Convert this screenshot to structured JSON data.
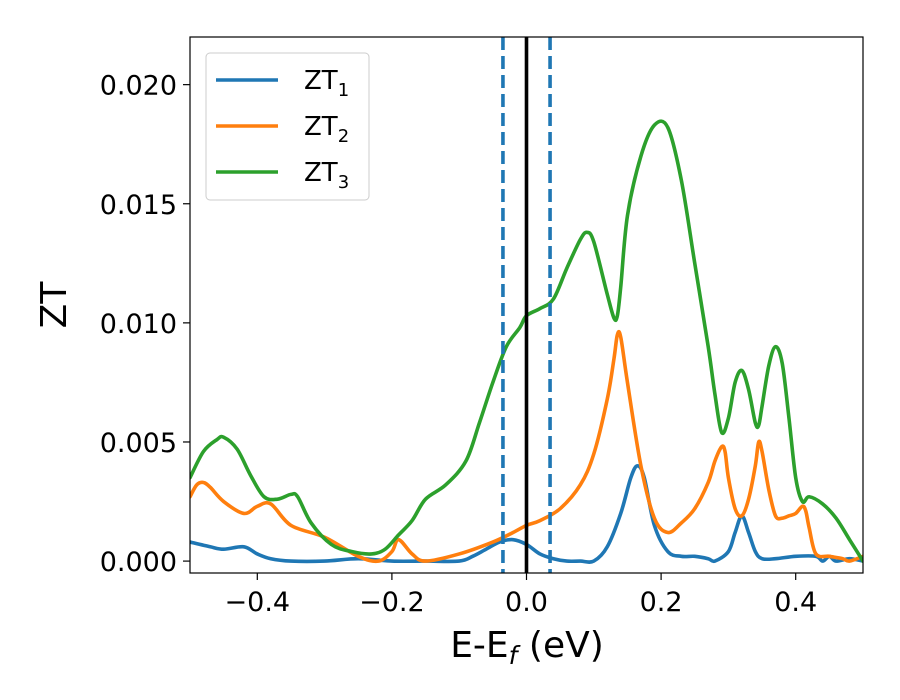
{
  "chart_data": {
    "type": "line",
    "title": "",
    "xlabel": "E-E",
    "xlabel_sub": "f",
    "xlabel_unit": " (eV)",
    "ylabel": "ZT",
    "xlim": [
      -0.5,
      0.5
    ],
    "ylim": [
      -0.0005,
      0.022
    ],
    "xticks": [
      -0.4,
      -0.2,
      0.0,
      0.2,
      0.4
    ],
    "xtick_labels": [
      "−0.4",
      "−0.2",
      "0.0",
      "0.2",
      "0.4"
    ],
    "yticks": [
      0.0,
      0.005,
      0.01,
      0.015,
      0.02
    ],
    "ytick_labels": [
      "0.000",
      "0.005",
      "0.010",
      "0.015",
      "0.020"
    ],
    "grid": false,
    "legend_position": "top-left",
    "vlines": [
      {
        "x": -0.035,
        "style": "dashed",
        "color": "#1f77b4"
      },
      {
        "x": 0.035,
        "style": "dashed",
        "color": "#1f77b4"
      },
      {
        "x": 0.0,
        "style": "solid",
        "color": "#000000"
      }
    ],
    "series": [
      {
        "name": "ZT",
        "name_sub": "1",
        "color": "#1f77b4",
        "x": [
          -0.5,
          -0.47,
          -0.45,
          -0.42,
          -0.4,
          -0.38,
          -0.35,
          -0.3,
          -0.25,
          -0.2,
          -0.15,
          -0.1,
          -0.08,
          -0.06,
          -0.04,
          -0.02,
          0.0,
          0.02,
          0.04,
          0.06,
          0.08,
          0.1,
          0.12,
          0.14,
          0.155,
          0.165,
          0.175,
          0.19,
          0.21,
          0.23,
          0.25,
          0.27,
          0.28,
          0.3,
          0.31,
          0.32,
          0.33,
          0.34,
          0.35,
          0.37,
          0.4,
          0.43,
          0.44,
          0.45,
          0.46,
          0.48,
          0.5
        ],
        "y": [
          0.0008,
          0.0006,
          0.0005,
          0.0006,
          0.0003,
          0.0001,
          0.0,
          0.0,
          0.0001,
          0.0,
          0.0,
          0.0,
          0.0002,
          0.0005,
          0.0008,
          0.0009,
          0.0007,
          0.0003,
          0.0001,
          0.0,
          0.0,
          0.0,
          0.0006,
          0.002,
          0.0035,
          0.004,
          0.0035,
          0.0015,
          0.0004,
          0.0002,
          0.0002,
          0.0001,
          0.0,
          0.0004,
          0.0012,
          0.0019,
          0.0012,
          0.0004,
          0.0001,
          0.0001,
          0.0002,
          0.0002,
          0.0,
          0.0002,
          0.0,
          0.0001,
          0.0
        ]
      },
      {
        "name": "ZT",
        "name_sub": "2",
        "color": "#ff7f0e",
        "x": [
          -0.5,
          -0.49,
          -0.48,
          -0.47,
          -0.45,
          -0.42,
          -0.4,
          -0.38,
          -0.35,
          -0.3,
          -0.25,
          -0.22,
          -0.2,
          -0.19,
          -0.17,
          -0.15,
          -0.1,
          -0.05,
          -0.02,
          0.0,
          0.02,
          0.05,
          0.08,
          0.1,
          0.12,
          0.13,
          0.135,
          0.14,
          0.15,
          0.17,
          0.19,
          0.21,
          0.23,
          0.25,
          0.27,
          0.28,
          0.29,
          0.295,
          0.3,
          0.31,
          0.32,
          0.33,
          0.34,
          0.345,
          0.35,
          0.36,
          0.37,
          0.38,
          0.39,
          0.4,
          0.41,
          0.415,
          0.42,
          0.43,
          0.45,
          0.47,
          0.48,
          0.5
        ],
        "y": [
          0.0027,
          0.0032,
          0.0033,
          0.0031,
          0.0025,
          0.002,
          0.0023,
          0.0024,
          0.0015,
          0.001,
          0.0002,
          0.0,
          0.0004,
          0.0009,
          0.0003,
          0.0,
          0.0003,
          0.0008,
          0.0012,
          0.0015,
          0.0017,
          0.0022,
          0.0032,
          0.0045,
          0.0068,
          0.0085,
          0.0095,
          0.0094,
          0.0075,
          0.004,
          0.0018,
          0.0012,
          0.0016,
          0.0022,
          0.0033,
          0.0042,
          0.0048,
          0.0046,
          0.0035,
          0.0022,
          0.0019,
          0.0026,
          0.004,
          0.005,
          0.0046,
          0.003,
          0.0019,
          0.0018,
          0.0019,
          0.002,
          0.0023,
          0.0021,
          0.0014,
          0.0003,
          0.0002,
          0.0001,
          0.0,
          0.0002
        ]
      },
      {
        "name": "ZT",
        "name_sub": "3",
        "color": "#2ca02c",
        "x": [
          -0.5,
          -0.48,
          -0.46,
          -0.45,
          -0.43,
          -0.41,
          -0.39,
          -0.37,
          -0.35,
          -0.34,
          -0.32,
          -0.29,
          -0.26,
          -0.23,
          -0.21,
          -0.19,
          -0.17,
          -0.15,
          -0.12,
          -0.09,
          -0.07,
          -0.05,
          -0.03,
          -0.01,
          0.0,
          0.02,
          0.04,
          0.06,
          0.08,
          0.09,
          0.1,
          0.12,
          0.13,
          0.135,
          0.14,
          0.15,
          0.17,
          0.19,
          0.21,
          0.23,
          0.25,
          0.27,
          0.28,
          0.29,
          0.3,
          0.31,
          0.32,
          0.33,
          0.34,
          0.345,
          0.35,
          0.36,
          0.37,
          0.38,
          0.39,
          0.4,
          0.41,
          0.42,
          0.44,
          0.46,
          0.48,
          0.5
        ],
        "y": [
          0.0035,
          0.0046,
          0.0051,
          0.0052,
          0.0047,
          0.0036,
          0.0027,
          0.0026,
          0.0028,
          0.0027,
          0.0016,
          0.0007,
          0.0004,
          0.0003,
          0.0005,
          0.0011,
          0.0017,
          0.0026,
          0.0032,
          0.0042,
          0.0058,
          0.0075,
          0.009,
          0.0098,
          0.0103,
          0.0106,
          0.011,
          0.0123,
          0.0135,
          0.0138,
          0.0134,
          0.0112,
          0.0102,
          0.0103,
          0.0115,
          0.0145,
          0.017,
          0.0183,
          0.0182,
          0.016,
          0.0125,
          0.009,
          0.007,
          0.0054,
          0.006,
          0.0075,
          0.008,
          0.0072,
          0.0058,
          0.0057,
          0.0065,
          0.0082,
          0.009,
          0.0083,
          0.006,
          0.0035,
          0.0025,
          0.0027,
          0.0024,
          0.0018,
          0.0009,
          0.0
        ]
      }
    ]
  }
}
